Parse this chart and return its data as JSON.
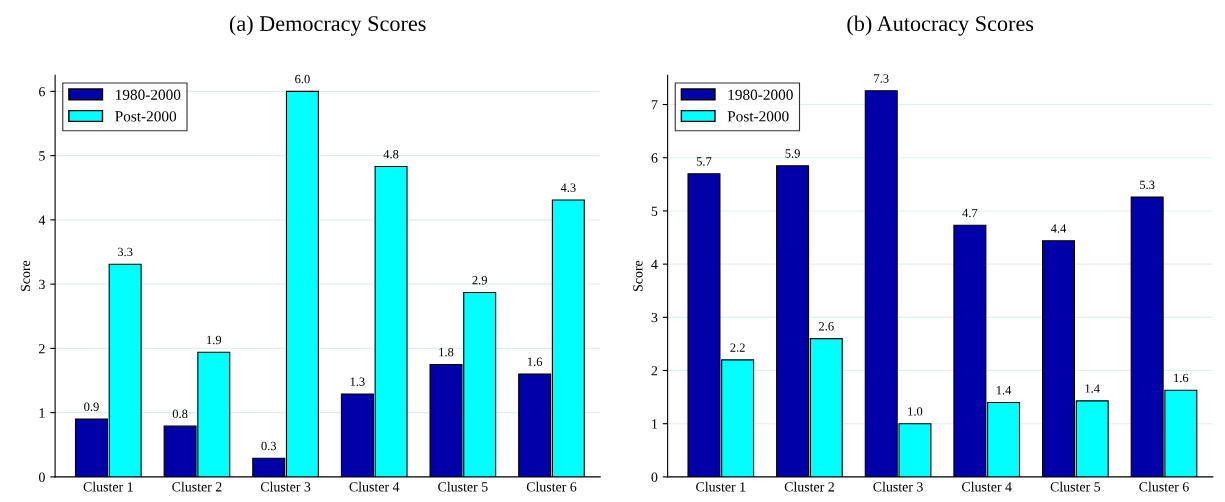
{
  "chart_data": [
    {
      "type": "bar",
      "title": "(a) Democracy Scores",
      "ylabel": "Score",
      "categories": [
        "Cluster 1",
        "Cluster 2",
        "Cluster 3",
        "Cluster 4",
        "Cluster 5",
        "Cluster 6"
      ],
      "series": [
        {
          "name": "1980-2000",
          "color": "#0000a8",
          "values": [
            0.9,
            0.79,
            0.29,
            1.29,
            1.75,
            1.6
          ],
          "value_labels": [
            "0.9",
            "0.8",
            "0.3",
            "1.3",
            "1.8",
            "1.6"
          ]
        },
        {
          "name": "Post-2000",
          "color": "#00ffff",
          "values": [
            3.31,
            1.94,
            6.0,
            4.83,
            2.87,
            4.31
          ],
          "value_labels": [
            "3.3",
            "1.9",
            "6.0",
            "4.8",
            "2.9",
            "4.3"
          ]
        }
      ],
      "ylim": [
        0,
        6.25
      ],
      "yticks": [
        0,
        1,
        2,
        3,
        4,
        5,
        6
      ],
      "grid": "y",
      "legend": "top left"
    },
    {
      "type": "bar",
      "title": "(b) Autocracy Scores",
      "ylabel": "Score",
      "categories": [
        "Cluster 1",
        "Cluster 2",
        "Cluster 3",
        "Cluster 4",
        "Cluster 5",
        "Cluster 6"
      ],
      "series": [
        {
          "name": "1980-2000",
          "color": "#0000a8",
          "values": [
            5.7,
            5.85,
            7.26,
            4.73,
            4.44,
            5.26
          ],
          "value_labels": [
            "5.7",
            "5.9",
            "7.3",
            "4.7",
            "4.4",
            "5.3"
          ]
        },
        {
          "name": "Post-2000",
          "color": "#00ffff",
          "values": [
            2.2,
            2.6,
            1.0,
            1.4,
            1.43,
            1.63
          ],
          "value_labels": [
            "2.2",
            "2.6",
            "1.0",
            "1.4",
            "1.4",
            "1.6"
          ]
        }
      ],
      "ylim": [
        0,
        7.55
      ],
      "yticks": [
        0,
        1,
        2,
        3,
        4,
        5,
        6,
        7
      ],
      "grid": "y",
      "legend": "top left"
    }
  ]
}
